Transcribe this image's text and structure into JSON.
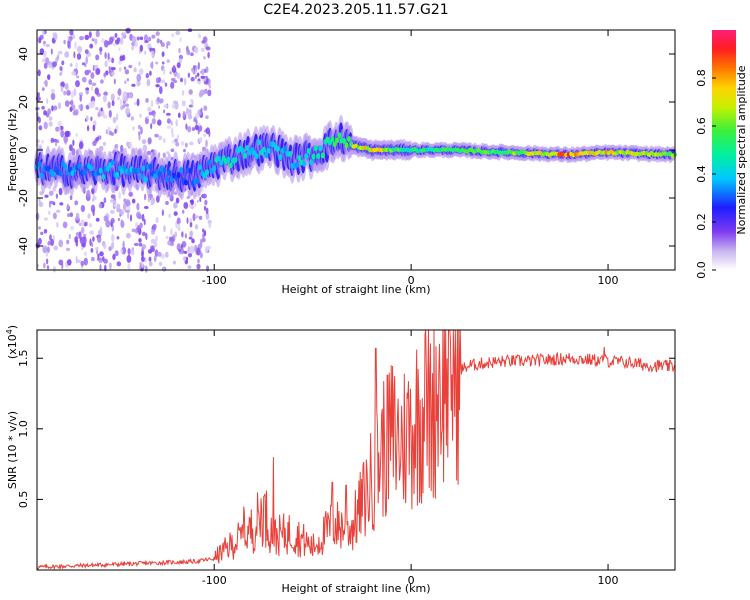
{
  "title": "C2E4.2023.205.11.57.G21",
  "chart_data": [
    {
      "type": "heatmap",
      "xlabel": "Height of straight line (km)",
      "ylabel": "Frequency (Hz)",
      "xlim": [
        -190,
        134
      ],
      "ylim": [
        -50,
        50
      ],
      "xticks": [
        -100,
        0,
        100
      ],
      "yticks": [
        -40,
        -20,
        0,
        20,
        40
      ],
      "colorbar": {
        "label": "Normalized spectral amplitude",
        "range": [
          0,
          1
        ],
        "ticks": [
          "0.0",
          "0.2",
          "0.4",
          "0.6",
          "0.8"
        ],
        "colormap": "white-purple-blue-cyan-green-yellow-orange-red-magenta"
      },
      "ridge": {
        "x": [
          -185,
          -170,
          -150,
          -130,
          -110,
          -100,
          -90,
          -80,
          -70,
          -60,
          -50,
          -40,
          -35,
          -30,
          -20,
          -10,
          0,
          20,
          50,
          80,
          100,
          134
        ],
        "frequency": [
          -8,
          -9,
          -8,
          -10,
          -11,
          -6,
          -3,
          0,
          1,
          -4,
          -2,
          3,
          5,
          2,
          0,
          0,
          0,
          0,
          -1,
          -2,
          -1,
          -2
        ],
        "peak_amplitude": [
          0.35,
          0.35,
          0.4,
          0.35,
          0.3,
          0.45,
          0.45,
          0.45,
          0.4,
          0.4,
          0.45,
          0.5,
          0.6,
          0.65,
          0.8,
          0.6,
          0.5,
          0.55,
          0.6,
          0.85,
          0.75,
          0.65
        ]
      }
    },
    {
      "type": "line",
      "xlabel": "Height of straight line (km)",
      "ylabel": "SNR (10 * v/v)",
      "y_multiplier": "(x10",
      "y_multiplier_exp": "4",
      "y_multiplier_close": ")",
      "xlim": [
        -190,
        134
      ],
      "ylim": [
        0,
        1.7
      ],
      "xticks": [
        -100,
        0,
        100
      ],
      "yticks": [
        0.5,
        1.0,
        1.5
      ],
      "ytick_labels": [
        "0.5",
        "1.0",
        "1.5"
      ],
      "color": "#e8413a",
      "series": [
        {
          "x": [
            -190,
            -170,
            -150,
            -130,
            -110,
            -100,
            -90,
            -80,
            -75,
            -70,
            -60,
            -50,
            -40,
            -30,
            -20,
            -15,
            -10,
            -5,
            0,
            5,
            10,
            15,
            20,
            25,
            30,
            40,
            50,
            60,
            70,
            80,
            90,
            100,
            110,
            120,
            134
          ],
          "values": [
            0.02,
            0.03,
            0.04,
            0.05,
            0.06,
            0.08,
            0.18,
            0.28,
            0.4,
            0.22,
            0.25,
            0.15,
            0.3,
            0.28,
            0.6,
            0.8,
            0.9,
            0.85,
            0.95,
            1.05,
            1.05,
            1.3,
            1.38,
            1.42,
            1.45,
            1.47,
            1.48,
            1.48,
            1.49,
            1.5,
            1.49,
            1.48,
            1.47,
            1.45,
            1.44
          ]
        }
      ],
      "spikes": [
        {
          "x": -85,
          "y": 0.45
        },
        {
          "x": -70,
          "y": 0.8
        },
        {
          "x": -40,
          "y": 0.62
        },
        {
          "x": -33,
          "y": 0.6
        },
        {
          "x": -18,
          "y": 1.57
        },
        {
          "x": -12,
          "y": 1.38
        },
        {
          "x": 7,
          "y": 1.67
        },
        {
          "x": 20,
          "y": 1.62
        },
        {
          "x": 98,
          "y": 1.58
        }
      ]
    }
  ]
}
